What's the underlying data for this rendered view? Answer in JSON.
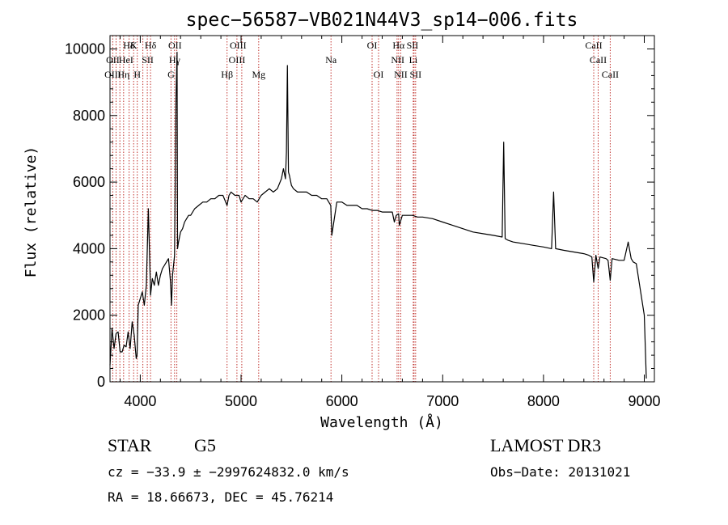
{
  "chart_data": {
    "type": "line",
    "title": "spec−56587−VB021N44V3_sp14−006.fits",
    "xlabel": "Wavelength (Å)",
    "ylabel": "Flux (relative)",
    "xlim": [
      3700,
      9100
    ],
    "ylim": [
      0,
      10400
    ],
    "xticks": [
      4000,
      5000,
      6000,
      7000,
      8000,
      9000
    ],
    "yticks": [
      0,
      2000,
      4000,
      6000,
      8000,
      10000
    ],
    "series": [
      {
        "name": "flux",
        "x": [
          3700,
          3720,
          3740,
          3760,
          3780,
          3800,
          3820,
          3840,
          3860,
          3880,
          3900,
          3920,
          3940,
          3960,
          3968,
          3980,
          4000,
          4020,
          4040,
          4060,
          4080,
          4100,
          4102,
          4120,
          4140,
          4160,
          4180,
          4200,
          4220,
          4240,
          4260,
          4280,
          4300,
          4310,
          4320,
          4340,
          4355,
          4365,
          4370,
          4380,
          4400,
          4420,
          4440,
          4460,
          4480,
          4500,
          4540,
          4580,
          4620,
          4660,
          4700,
          4740,
          4780,
          4820,
          4861,
          4880,
          4900,
          4940,
          4980,
          5000,
          5040,
          5080,
          5120,
          5160,
          5200,
          5240,
          5280,
          5320,
          5360,
          5400,
          5420,
          5440,
          5450,
          5460,
          5470,
          5480,
          5500,
          5520,
          5560,
          5600,
          5650,
          5700,
          5750,
          5800,
          5850,
          5890,
          5900,
          5950,
          6000,
          6050,
          6100,
          6150,
          6200,
          6250,
          6300,
          6350,
          6400,
          6450,
          6500,
          6520,
          6540,
          6563,
          6570,
          6600,
          6650,
          6700,
          6750,
          6800,
          6900,
          7000,
          7100,
          7200,
          7300,
          7400,
          7500,
          7590,
          7605,
          7620,
          7650,
          7700,
          7800,
          7900,
          8000,
          8080,
          8100,
          8120,
          8200,
          8300,
          8400,
          8450,
          8480,
          8498,
          8520,
          8542,
          8560,
          8620,
          8640,
          8662,
          8680,
          8750,
          8780,
          8800,
          8840,
          8870,
          8890,
          8920,
          9000,
          9020
        ],
        "values": [
          500,
          1600,
          1000,
          1450,
          1500,
          900,
          900,
          1100,
          1050,
          1500,
          1000,
          1800,
          1400,
          700,
          800,
          2300,
          2500,
          2700,
          2300,
          2900,
          5200,
          2900,
          2600,
          3100,
          2900,
          3300,
          2900,
          3200,
          3400,
          3500,
          3600,
          3700,
          3000,
          2300,
          3200,
          3800,
          8500,
          9900,
          4000,
          4200,
          4500,
          4600,
          4800,
          4900,
          5000,
          5000,
          5200,
          5300,
          5400,
          5400,
          5500,
          5500,
          5600,
          5600,
          5300,
          5600,
          5700,
          5600,
          5600,
          5400,
          5600,
          5500,
          5500,
          5400,
          5600,
          5700,
          5800,
          5700,
          5800,
          6100,
          6400,
          6100,
          6900,
          9500,
          6300,
          6200,
          5900,
          5800,
          5700,
          5700,
          5700,
          5600,
          5600,
          5500,
          5500,
          5300,
          4400,
          5400,
          5400,
          5300,
          5300,
          5300,
          5200,
          5200,
          5150,
          5150,
          5100,
          5100,
          5100,
          4800,
          5000,
          5050,
          4700,
          5000,
          5000,
          5000,
          4950,
          4950,
          4900,
          4800,
          4700,
          4600,
          4500,
          4450,
          4400,
          4350,
          7200,
          4300,
          4250,
          4200,
          4150,
          4100,
          4050,
          4000,
          5700,
          4000,
          3950,
          3900,
          3850,
          3800,
          3750,
          3000,
          3800,
          3400,
          3750,
          3700,
          3650,
          3050,
          3700,
          3650,
          3650,
          3650,
          4200,
          3700,
          3600,
          3550,
          2000,
          100
        ]
      }
    ],
    "annotations": {
      "row1": [
        {
          "label": "Hδ",
          "x": 3888
        },
        {
          "label": "K",
          "x": 3934
        },
        {
          "label": "Hδ",
          "x": 4102
        },
        {
          "label": "OII",
          "x": 4344
        },
        {
          "label": "OIII",
          "x": 4970
        },
        {
          "label": "OI",
          "x": 6300
        },
        {
          "label": "Hα",
          "x": 6563
        },
        {
          "label": "SII",
          "x": 6700
        },
        {
          "label": "CaII",
          "x": 8498
        }
      ],
      "row2": [
        {
          "label": "OII",
          "x": 3727
        },
        {
          "label": "HeI",
          "x": 3860
        },
        {
          "label": "SII",
          "x": 4074
        },
        {
          "label": "Hγ",
          "x": 4340
        },
        {
          "label": "OIII",
          "x": 4960
        },
        {
          "label": "Na",
          "x": 5892
        },
        {
          "label": "NII",
          "x": 6554
        },
        {
          "label": "Li",
          "x": 6708
        },
        {
          "label": "CaII",
          "x": 8542
        }
      ],
      "row3": [
        {
          "label": "OIII",
          "x": 3727
        },
        {
          "label": "Hη",
          "x": 3835
        },
        {
          "label": "H",
          "x": 3970
        },
        {
          "label": "G",
          "x": 4305
        },
        {
          "label": "Hβ",
          "x": 4861
        },
        {
          "label": "Mg",
          "x": 5175
        },
        {
          "label": "OI",
          "x": 6364
        },
        {
          "label": "NII",
          "x": 6584
        },
        {
          "label": "SII",
          "x": 6731
        },
        {
          "label": "CaII",
          "x": 8662
        }
      ]
    },
    "line_markers": [
      3727,
      3760,
      3798,
      3835,
      3889,
      3934,
      3970,
      4026,
      4070,
      4102,
      4305,
      4340,
      4363,
      4861,
      4959,
      5007,
      5175,
      5892,
      6300,
      6364,
      6548,
      6563,
      6584,
      6708,
      6716,
      6731,
      8498,
      8542,
      8662
    ]
  },
  "footer": {
    "class_label": "STAR",
    "subclass_label": "G5",
    "survey_label": "LAMOST DR3",
    "cz_text": "cz = −33.9 ± −2997624832.0 km/s",
    "obs_date_text": "Obs−Date: 20131021",
    "radec_text": "RA =  18.66673, DEC =  45.76214"
  },
  "colors": {
    "marker": "#c0302b",
    "axis": "#000000",
    "trace": "#000000"
  }
}
